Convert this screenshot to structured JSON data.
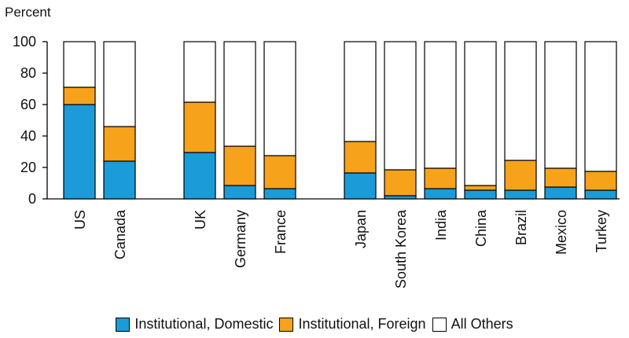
{
  "chart_data": {
    "type": "bar",
    "stacked": true,
    "ylabel": "Percent",
    "ylim": [
      0,
      100
    ],
    "yticks": [
      0,
      20,
      40,
      60,
      80,
      100
    ],
    "categories": [
      "US",
      "Canada",
      "UK",
      "Germany",
      "France",
      "Japan",
      "South Korea",
      "India",
      "China",
      "Brazil",
      "Mexico",
      "Turkey"
    ],
    "groups": [
      [
        "US",
        "Canada"
      ],
      [
        "UK",
        "Germany",
        "France"
      ],
      [
        "Japan",
        "South Korea",
        "India",
        "China",
        "Brazil",
        "Mexico",
        "Turkey"
      ]
    ],
    "series": [
      {
        "name": "Institutional, Domestic",
        "color": "#1b9bd7",
        "values": [
          60,
          24,
          29.5,
          8.5,
          6.5,
          16.5,
          2,
          6.5,
          5.5,
          5.5,
          7.5,
          5.5
        ]
      },
      {
        "name": "Institutional, Foreign",
        "color": "#f7a21b",
        "values": [
          11,
          22,
          32,
          25,
          21,
          20,
          16.5,
          13,
          3,
          19,
          12,
          12
        ]
      },
      {
        "name": "All Others",
        "color": "#ffffff",
        "values": [
          29,
          54,
          38.5,
          66.5,
          72.5,
          63.5,
          81.5,
          80.5,
          91.5,
          75.5,
          80.5,
          82.5
        ]
      }
    ],
    "legend": "bottom-center",
    "grid": false
  }
}
